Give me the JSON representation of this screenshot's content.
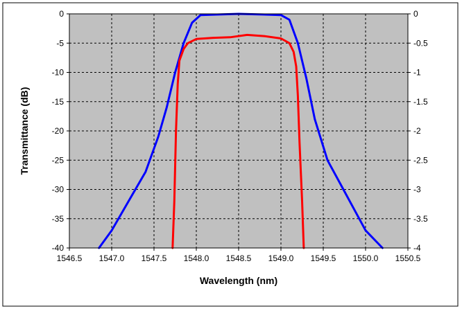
{
  "chart_data": {
    "type": "line",
    "title": "",
    "xlabel": "Wavelength (nm)",
    "ylabel": "Transmittance (dB)",
    "y2label": "",
    "xlim": [
      1546.5,
      1550.5
    ],
    "ylim": [
      -40,
      0
    ],
    "y2lim": [
      -4,
      0
    ],
    "x_ticks": [
      "1546.5",
      "1547.0",
      "1547.5",
      "1548.0",
      "1548.5",
      "1549.0",
      "1549.5",
      "1550.0",
      "1550.5"
    ],
    "y_ticks": [
      "0",
      "-5",
      "-10",
      "-15",
      "-20",
      "-25",
      "-30",
      "-35",
      "-40"
    ],
    "y2_ticks": [
      "0",
      "-0.5",
      "-1",
      "-1.5",
      "-2",
      "-2.5",
      "-3",
      "-3.5",
      "-4"
    ],
    "grid": true,
    "legend": "none",
    "plot_background": "#c0c0c0",
    "series": [
      {
        "color": "#0000ff",
        "axis": "left",
        "x": [
          1546.85,
          1547.0,
          1547.2,
          1547.4,
          1547.55,
          1547.65,
          1547.75,
          1547.85,
          1547.95,
          1548.05,
          1548.5,
          1549.0,
          1549.1,
          1549.2,
          1549.3,
          1549.4,
          1549.55,
          1549.7,
          1549.85,
          1550.0,
          1550.2
        ],
        "y": [
          -40,
          -37,
          -32,
          -27,
          -21,
          -16,
          -10,
          -5,
          -1.5,
          -0.2,
          0,
          -0.2,
          -1,
          -5,
          -11,
          -18,
          -25,
          -29,
          -33,
          -37,
          -40
        ]
      },
      {
        "color": "#ff0000",
        "axis": "left",
        "x": [
          1547.72,
          1547.74,
          1547.76,
          1547.78,
          1547.8,
          1547.85,
          1547.9,
          1548.0,
          1548.2,
          1548.4,
          1548.6,
          1548.8,
          1549.0,
          1549.1,
          1549.15,
          1549.18,
          1549.2,
          1549.22,
          1549.25,
          1549.27
        ],
        "y": [
          -40,
          -32,
          -20,
          -12,
          -8,
          -6,
          -5,
          -4.3,
          -4.1,
          -4.0,
          -3.6,
          -3.8,
          -4.2,
          -5,
          -6.5,
          -9,
          -14,
          -22,
          -32,
          -40
        ]
      }
    ]
  }
}
